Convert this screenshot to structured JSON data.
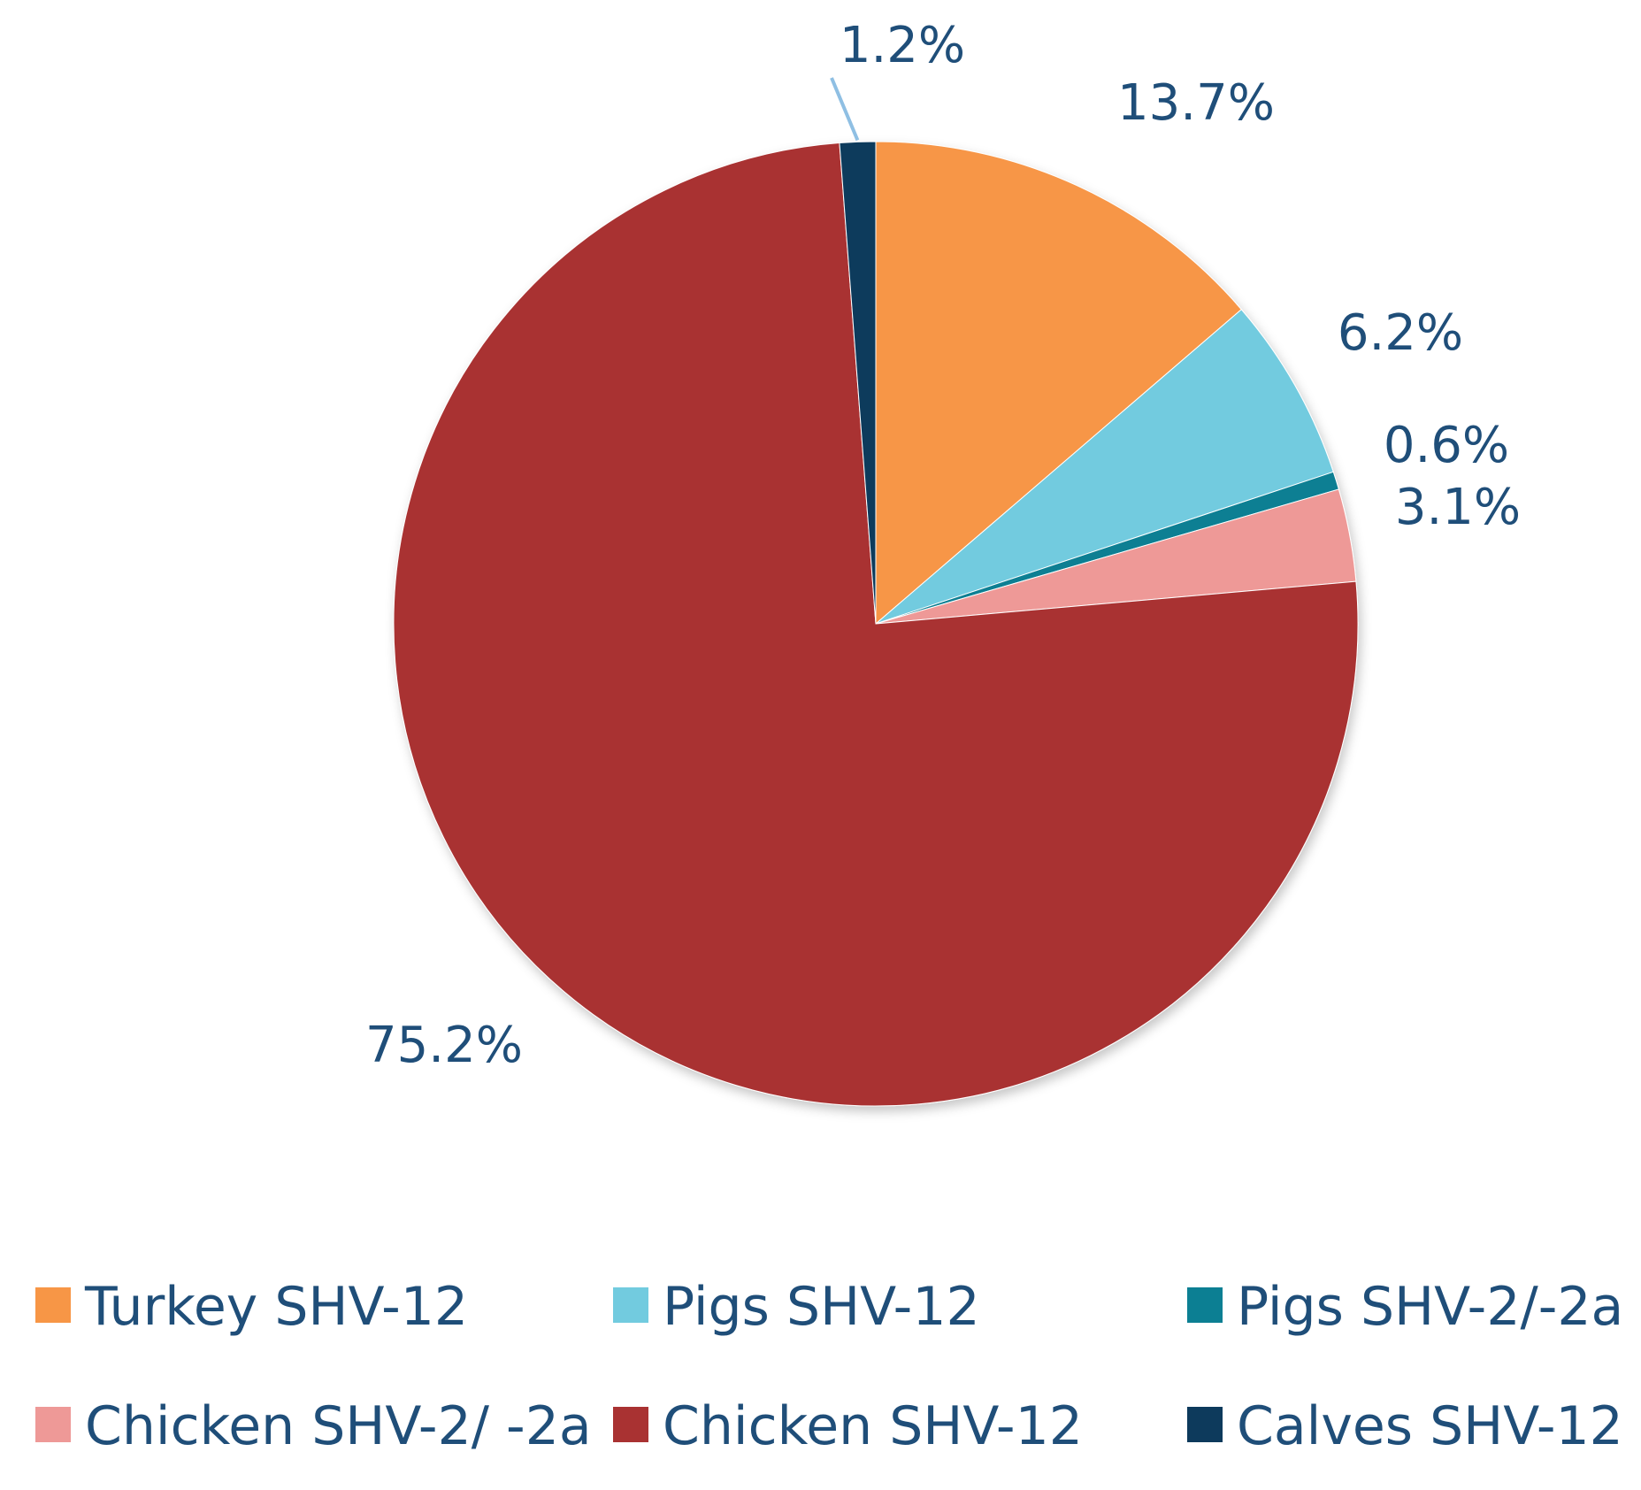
{
  "chart_data": {
    "type": "pie",
    "title": "",
    "categories": [
      "Turkey SHV-12",
      "Pigs SHV-12",
      "Pigs SHV-2/-2a",
      "Chicken SHV-2/ -2a",
      "Chicken SHV-12",
      "Calves SHV-12"
    ],
    "values": [
      13.7,
      6.2,
      0.6,
      3.1,
      75.2,
      1.2
    ],
    "labels": [
      "13.7%",
      "6.2%",
      "0.6%",
      "3.1%",
      "75.2%",
      "1.2%"
    ],
    "colors": [
      "#f79646",
      "#72cbdf",
      "#0c7f93",
      "#ee9997",
      "#a93232",
      "#0d3a5c"
    ],
    "label_color": "#1f4e79",
    "legend_position": "bottom",
    "start_angle_deg": 0,
    "direction": "clockwise"
  }
}
